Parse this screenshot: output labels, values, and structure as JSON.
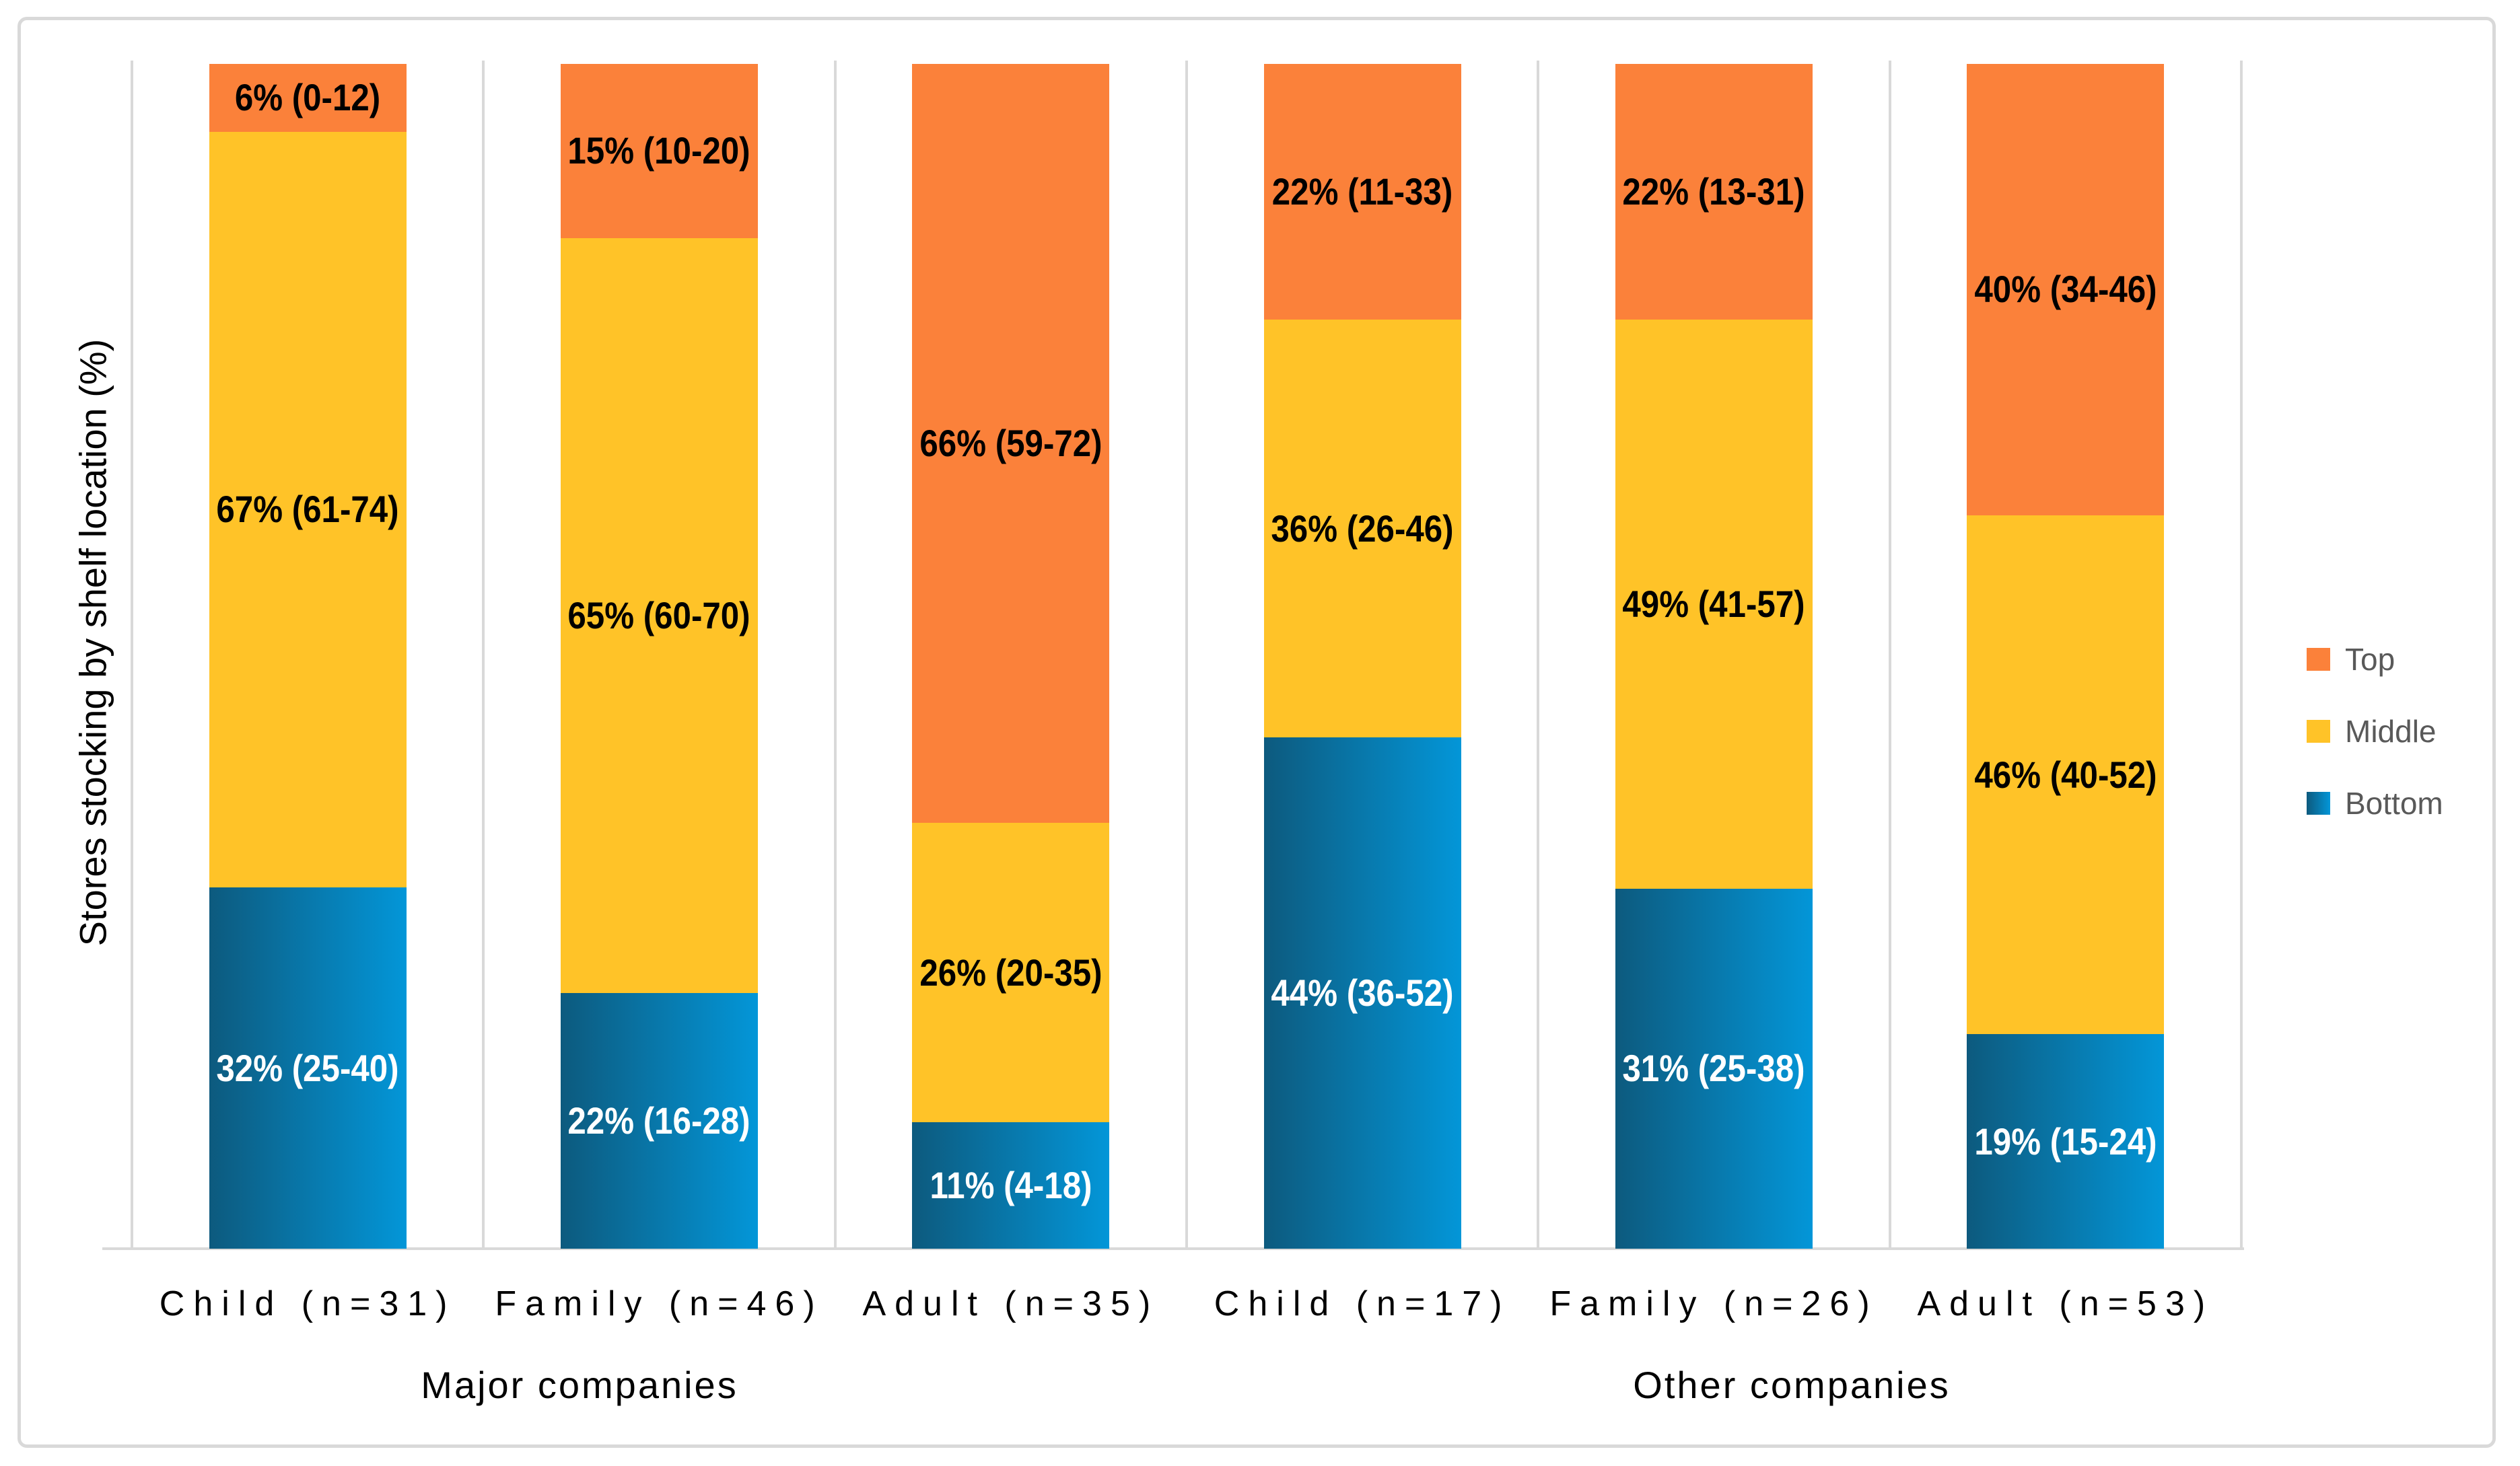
{
  "chart_data": {
    "type": "bar",
    "stacked": "percent",
    "ylabel": "Stores stocking by shelf location (%)",
    "xlabel": "",
    "yaxis": {
      "tick_labels": "none",
      "range_percent": [
        0,
        100
      ]
    },
    "gridlines": "vertical category separators only",
    "categories": [
      "Child (n=31)",
      "Family (n=46)",
      "Adult (n=35)",
      "Child (n=17)",
      "Family (n=26)",
      "Adult (n=53)"
    ],
    "group_labels": [
      "Major companies",
      "Other companies"
    ],
    "category_group_map": [
      0,
      0,
      0,
      1,
      1,
      1
    ],
    "series": [
      {
        "name": "Top",
        "values": [
          6,
          15,
          66,
          22,
          22,
          40
        ],
        "ci": [
          "0-12",
          "10-20",
          "59-72",
          "11-33",
          "13-31",
          "34-46"
        ],
        "label_color": "#000000"
      },
      {
        "name": "Middle",
        "values": [
          67,
          65,
          26,
          36,
          49,
          46
        ],
        "ci": [
          "61-74",
          "60-70",
          "20-35",
          "26-46",
          "41-57",
          "40-52"
        ],
        "label_color": "#000000"
      },
      {
        "name": "Bottom",
        "values": [
          32,
          22,
          11,
          44,
          31,
          19
        ],
        "ci": [
          "25-40",
          "16-28",
          "4-18",
          "36-52",
          "25-38",
          "15-24"
        ],
        "label_color": "#FFFFFF"
      }
    ],
    "data_label_format": "{value}% ({ci})",
    "legend": {
      "position": "right",
      "entries": [
        "Top",
        "Middle",
        "Bottom"
      ]
    }
  },
  "colors": {
    "top": "#FB813A",
    "middle": "#FFC328",
    "bottom_gradient_left": "#0D5A7E",
    "bottom_gradient_right": "#0396D8",
    "gridline": "#D9D9D9",
    "frame_border": "#D9D9D9",
    "axis_line": "#D9D9D9",
    "legend_text": "#595959",
    "label_on_light": "#000000",
    "label_on_dark": "#FFFFFF"
  }
}
